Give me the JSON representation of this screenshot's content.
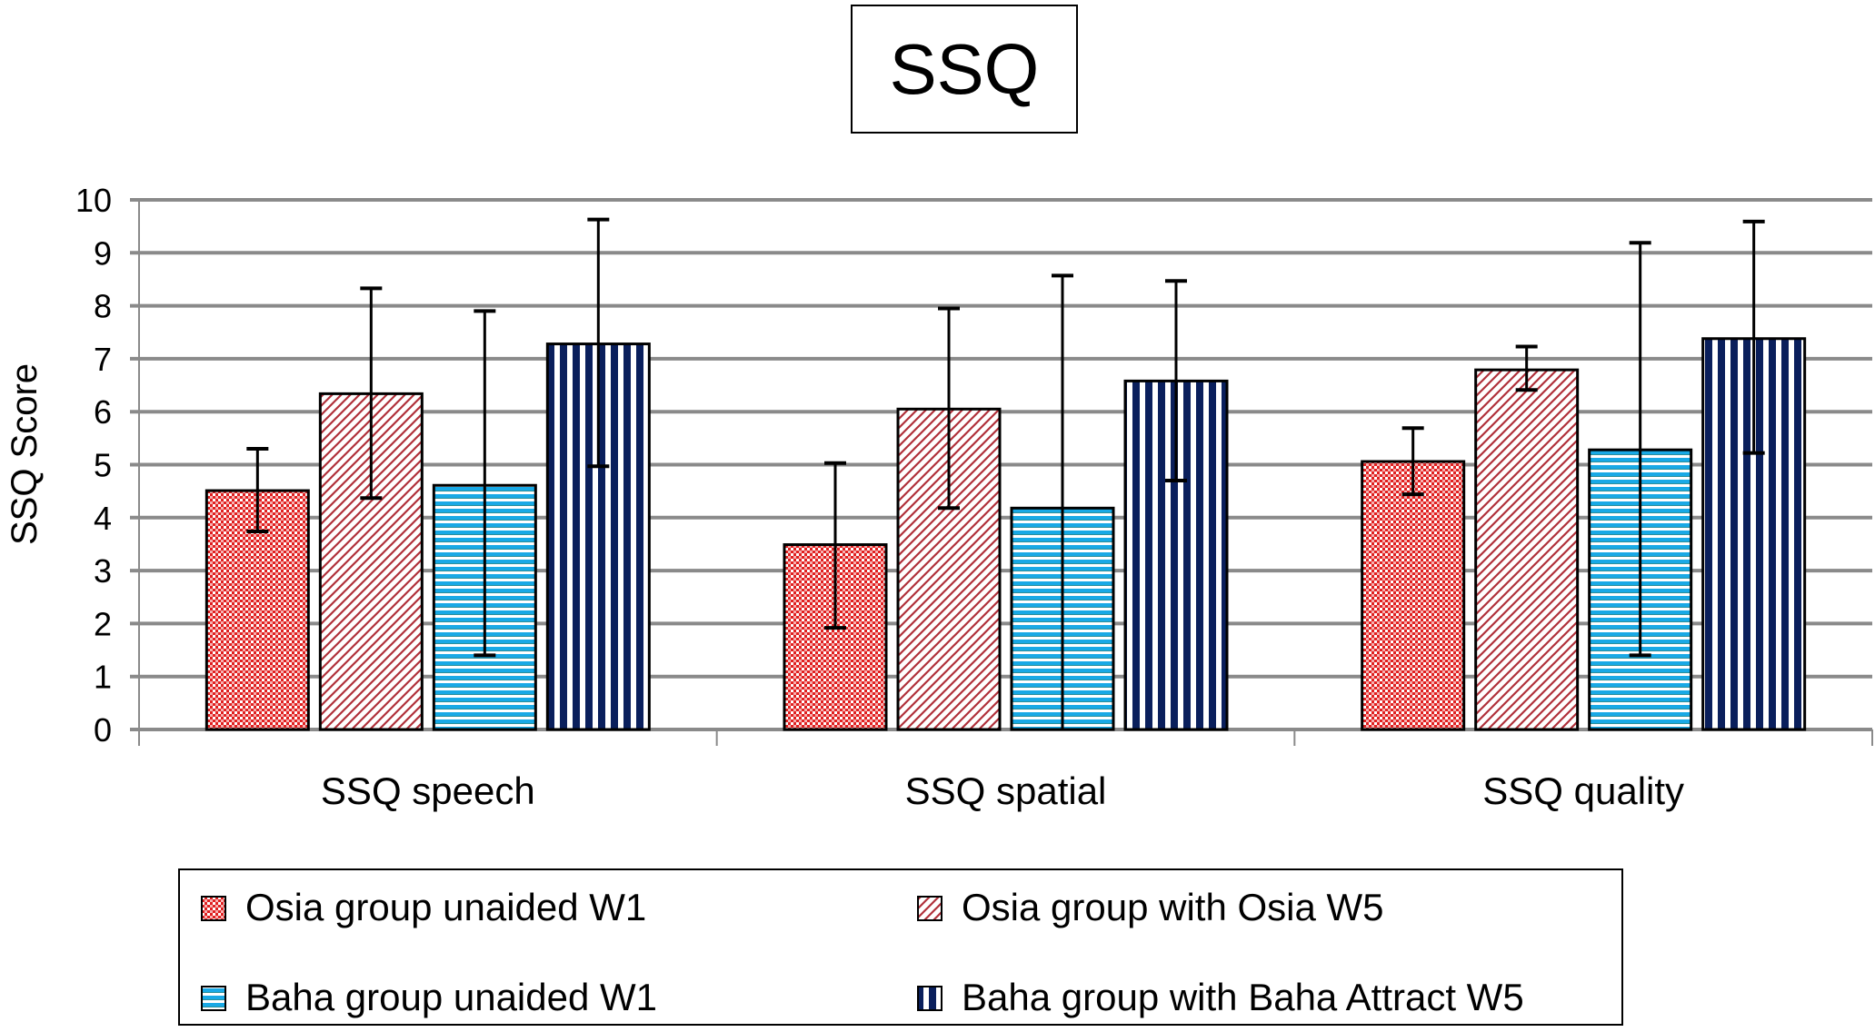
{
  "chart_data": {
    "type": "bar",
    "title": "SSQ",
    "xlabel": "",
    "ylabel": "SSQ Score",
    "ylim": [
      0,
      10
    ],
    "yticks": [
      "0",
      "1",
      "2",
      "3",
      "4",
      "5",
      "6",
      "7",
      "8",
      "9",
      "10"
    ],
    "grid": true,
    "legend_placement": "bottom",
    "categories": [
      "SSQ speech",
      "SSQ spatial",
      "SSQ quality"
    ],
    "series": [
      {
        "name": "Osia group unaided W1",
        "pattern": "red-checker",
        "color": "#e02020",
        "values": [
          4.51,
          3.49,
          5.06
        ],
        "err_high": [
          5.3,
          5.03,
          5.69
        ],
        "err_low": [
          3.74,
          1.92,
          4.44
        ]
      },
      {
        "name": "Osia group with Osia W5",
        "pattern": "red-diagonal-hatch",
        "color": "#c0262a",
        "values": [
          6.34,
          6.05,
          6.79
        ],
        "err_high": [
          8.33,
          7.95,
          7.23
        ],
        "err_low": [
          4.37,
          4.18,
          6.41
        ]
      },
      {
        "name": "Baha group unaided W1",
        "pattern": "cyan-horizontal-stripes",
        "color": "#19a9e6",
        "values": [
          4.61,
          4.18,
          5.28
        ],
        "err_high": [
          7.9,
          8.57,
          9.19
        ],
        "err_low": [
          1.4,
          0.0,
          1.4
        ]
      },
      {
        "name": "Baha group with Baha Attract W5",
        "pattern": "navy-vertical-stripes",
        "color": "#0a1f5c",
        "values": [
          7.28,
          6.58,
          7.38
        ],
        "err_high": [
          9.63,
          8.47,
          9.59
        ],
        "err_low": [
          4.97,
          4.7,
          5.22
        ]
      }
    ]
  }
}
